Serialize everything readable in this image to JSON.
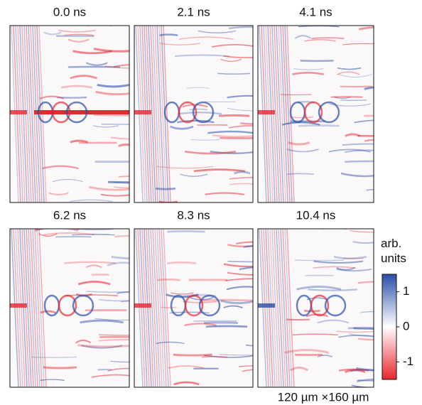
{
  "panels": [
    {
      "title": "0.0 ns"
    },
    {
      "title": "2.1 ns"
    },
    {
      "title": "4.1 ns"
    },
    {
      "title": "6.2 ns"
    },
    {
      "title": "8.3 ns"
    },
    {
      "title": "10.4 ns"
    }
  ],
  "colorbar": {
    "label": "arb. units",
    "lim": [
      -1.5,
      1.5
    ],
    "ticks": [
      1,
      0,
      -1
    ],
    "colors": [
      "#e8262e",
      "#ffffff",
      "#2a4fa8"
    ]
  },
  "caption": "120 µm ×160 µm"
}
